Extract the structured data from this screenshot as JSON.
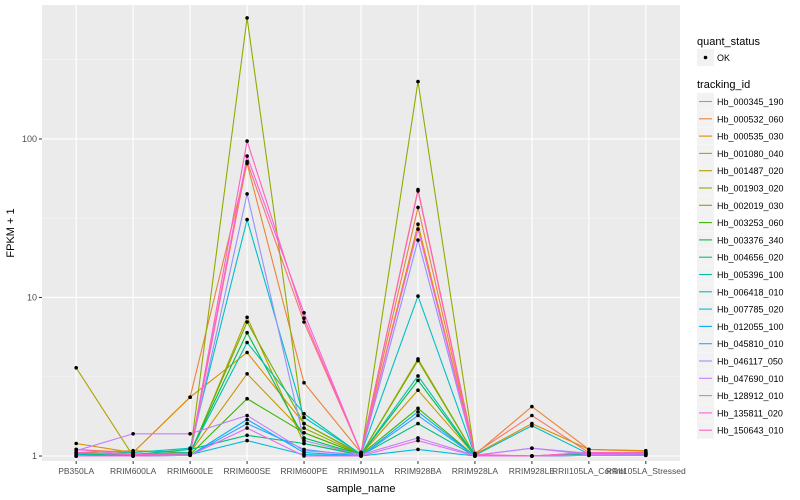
{
  "chart_data": {
    "type": "line",
    "xlabel": "sample_name",
    "ylabel": "FPKM + 1",
    "y_scale": "log10",
    "ylim": [
      0.93,
      700
    ],
    "y_ticks": [
      1,
      10,
      100
    ],
    "y_tick_labels": [
      "1",
      "10",
      "100"
    ],
    "categories": [
      "PB350LA",
      "RRIM600LA",
      "RRIM600LE",
      "RRIM600SE",
      "RRIM600PE",
      "RRIM901LA",
      "RRIM928BA",
      "RRIM928LA",
      "RRIM928LE",
      "RRII105LA_Control",
      "RRII105LA_Stressed"
    ],
    "legend_quant": {
      "title": "quant_status",
      "entries": [
        "OK"
      ]
    },
    "legend_title": "tracking_id",
    "series": [
      {
        "name": "Hb_000345_190",
        "color": "#F8766D",
        "values": [
          1.05,
          1.02,
          1.03,
          72,
          7,
          1.05,
          48,
          1.04,
          1.8,
          1.05,
          1.04
        ]
      },
      {
        "name": "Hb_000532_060",
        "color": "#EC8239",
        "values": [
          1.1,
          1.05,
          2.35,
          70,
          2.9,
          1.05,
          37,
          1.02,
          2.05,
          1.1,
          1.07
        ]
      },
      {
        "name": "Hb_000535_030",
        "color": "#DB8E00",
        "values": [
          1.2,
          1.05,
          2.35,
          4.5,
          1.6,
          1.03,
          29,
          1.02,
          1.6,
          1.1,
          1.08
        ]
      },
      {
        "name": "Hb_001080_040",
        "color": "#C79800",
        "values": [
          1.05,
          1.08,
          1.05,
          3.3,
          1.4,
          1.02,
          2.6,
          1.01,
          1.0,
          1.05,
          1.05
        ]
      },
      {
        "name": "Hb_001487_020",
        "color": "#AFA100",
        "values": [
          3.6,
          1.0,
          1.02,
          7.5,
          1.2,
          1.02,
          4.1,
          1.01,
          1.0,
          1.03,
          1.03
        ]
      },
      {
        "name": "Hb_001903_020",
        "color": "#93AA00",
        "values": [
          1.0,
          1.0,
          1.02,
          580,
          1.5,
          1.02,
          230,
          1.01,
          1.0,
          1.03,
          1.03
        ]
      },
      {
        "name": "Hb_002019_030",
        "color": "#72B000",
        "values": [
          1.02,
          1.01,
          1.04,
          7.0,
          1.6,
          1.02,
          4.0,
          1.01,
          1.0,
          1.03,
          1.04
        ]
      },
      {
        "name": "Hb_003253_060",
        "color": "#39B600",
        "values": [
          1.0,
          1.0,
          1.02,
          2.3,
          1.4,
          1.02,
          2.0,
          1.0,
          1.0,
          1.02,
          1.02
        ]
      },
      {
        "name": "Hb_003376_340",
        "color": "#00BB4E",
        "values": [
          1.0,
          1.01,
          1.05,
          6.0,
          1.3,
          1.02,
          3.0,
          1.0,
          1.0,
          1.02,
          1.03
        ]
      },
      {
        "name": "Hb_004656_020",
        "color": "#00BF7D",
        "values": [
          1.0,
          1.02,
          1.1,
          1.35,
          1.2,
          1.01,
          1.6,
          1.0,
          1.0,
          1.01,
          1.02
        ]
      },
      {
        "name": "Hb_005396_100",
        "color": "#00C1A3",
        "values": [
          1.02,
          1.03,
          1.05,
          5.2,
          1.85,
          1.02,
          3.2,
          1.01,
          1.0,
          1.02,
          1.03
        ]
      },
      {
        "name": "Hb_006418_010",
        "color": "#00BFC4",
        "values": [
          1.03,
          1.05,
          1.12,
          31,
          1.75,
          1.03,
          10.2,
          1.01,
          1.55,
          1.03,
          1.04
        ]
      },
      {
        "name": "Hb_007785_020",
        "color": "#00BAE0",
        "values": [
          1.0,
          1.0,
          1.02,
          1.25,
          1.02,
          1.0,
          1.1,
          1.0,
          1.0,
          1.01,
          1.01
        ]
      },
      {
        "name": "Hb_012055_100",
        "color": "#00B0F6",
        "values": [
          1.0,
          1.0,
          1.01,
          1.7,
          1.05,
          1.0,
          1.9,
          1.0,
          1.0,
          1.01,
          1.01
        ]
      },
      {
        "name": "Hb_045810_010",
        "color": "#35A2FF",
        "values": [
          1.0,
          1.0,
          1.01,
          1.6,
          1.1,
          1.0,
          1.8,
          1.0,
          1.0,
          1.01,
          1.01
        ]
      },
      {
        "name": "Hb_046117_050",
        "color": "#9590FF",
        "values": [
          1.05,
          1.02,
          1.04,
          45,
          1.25,
          1.02,
          23,
          1.01,
          1.12,
          1.04,
          1.05
        ]
      },
      {
        "name": "Hb_047690_010",
        "color": "#C77CFF",
        "values": [
          1.08,
          1.38,
          1.38,
          1.8,
          1.08,
          1.02,
          1.3,
          1.01,
          1.12,
          1.02,
          1.03
        ]
      },
      {
        "name": "Hb_128912_010",
        "color": "#E76BF3",
        "values": [
          1.0,
          1.0,
          1.01,
          1.5,
          1.0,
          1.0,
          1.25,
          1.0,
          1.0,
          1.01,
          1.01
        ]
      },
      {
        "name": "Hb_135811_020",
        "color": "#FA62DB",
        "values": [
          1.1,
          1.02,
          1.03,
          78,
          8,
          1.05,
          27,
          1.02,
          1.0,
          1.05,
          1.05
        ]
      },
      {
        "name": "Hb_150643_010",
        "color": "#FF62BC",
        "values": [
          1.05,
          1.02,
          1.03,
          97,
          7.4,
          1.05,
          47,
          1.02,
          1.0,
          1.05,
          1.05
        ]
      }
    ]
  }
}
